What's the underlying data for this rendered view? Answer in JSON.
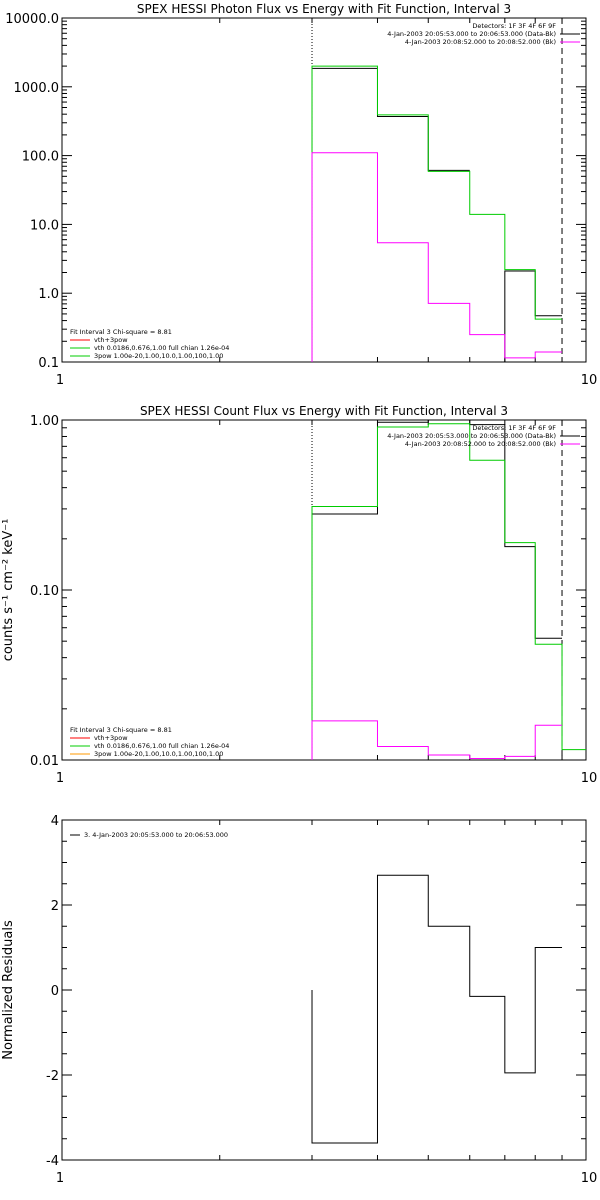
{
  "chart_data": [
    {
      "type": "line",
      "title": "SPEX HESSI Photon Flux vs Energy with Fit Function, Interval 3",
      "xlabel": "",
      "ylabel": "",
      "xscale": "log",
      "yscale": "log",
      "xlim": [
        1,
        10
      ],
      "ylim": [
        0.1,
        10000
      ],
      "x_ticks": [
        {
          "v": 1,
          "label": "1"
        },
        {
          "v": 10,
          "label": "10"
        }
      ],
      "y_ticks": [
        {
          "v": 10000,
          "label": "10000.0"
        },
        {
          "v": 1000,
          "label": "1000.0"
        },
        {
          "v": 100,
          "label": "100.0"
        },
        {
          "v": 10,
          "label": "10.0"
        },
        {
          "v": 1,
          "label": "1.0"
        },
        {
          "v": 0.1,
          "label": "0.1"
        }
      ],
      "fit_range_start": 3.0,
      "fit_range_end": 9.0,
      "bin_edges": [
        3.0,
        4.0,
        5.0,
        6.0,
        7.0,
        8.0,
        9.0
      ],
      "series": [
        {
          "key": "data",
          "color": "#000000",
          "values": [
            1850,
            370,
            61,
            null,
            2.1,
            0.47
          ]
        },
        {
          "key": "model",
          "color": "#00cc00",
          "values": [
            2000,
            390,
            59,
            14,
            2.2,
            0.42
          ]
        },
        {
          "key": "background",
          "color": "#ff00ff",
          "values": [
            110,
            5.4,
            0.71,
            0.25,
            0.115,
            0.14
          ]
        }
      ],
      "legend_top_right": {
        "header": "Detectors: 1F 3F 4F 6F 9F",
        "lines": [
          {
            "text": "4-Jan-2003 20:05:53.000 to 20:06:53.000 (Data-Bk)",
            "color": "#000000"
          },
          {
            "text": "4-Jan-2003 20:08:52.000 to 20:08:52.000 (Bk)",
            "color": "#ff00ff"
          }
        ]
      },
      "legend_bottom_left": {
        "header": "Fit Interval 3   Chi-square = 8.81",
        "lines": [
          {
            "text": "vth+3pow",
            "color": "#ff0000"
          },
          {
            "text": "vth 0.0186,0.676,1.00  full chian 1.26e-04",
            "color": "#00cc00"
          },
          {
            "text": "3pow 1.00e-20,1.00,10.0,1.00,100,1.00",
            "color": "#00cc00"
          }
        ]
      }
    },
    {
      "type": "line",
      "title": "SPEX HESSI Count Flux vs Energy with Fit Function, Interval 3",
      "xlabel": "",
      "ylabel": "counts s⁻¹ cm⁻² keV⁻¹",
      "xscale": "log",
      "yscale": "log",
      "xlim": [
        1,
        10
      ],
      "ylim": [
        0.01,
        1.0
      ],
      "x_ticks": [
        {
          "v": 1,
          "label": "1"
        },
        {
          "v": 10,
          "label": "10"
        }
      ],
      "y_ticks": [
        {
          "v": 1.0,
          "label": "1.00"
        },
        {
          "v": 0.1,
          "label": "0.10"
        },
        {
          "v": 0.01,
          "label": "0.01"
        }
      ],
      "fit_range_start": 3.0,
      "fit_range_end": 9.0,
      "bin_edges": [
        3.0,
        4.0,
        5.0,
        6.0,
        7.0,
        8.0,
        9.0,
        10.0
      ],
      "series": [
        {
          "key": "data",
          "color": "#000000",
          "values": [
            0.28,
            0.97,
            1.0,
            0.94,
            0.18,
            0.052,
            null
          ]
        },
        {
          "key": "model",
          "color": "#00cc00",
          "values": [
            0.31,
            0.91,
            0.95,
            0.58,
            0.19,
            0.048,
            0.0115
          ]
        },
        {
          "key": "background",
          "color": "#ff00ff",
          "values": [
            0.017,
            0.012,
            0.0107,
            0.0102,
            0.0105,
            0.016,
            null
          ]
        }
      ],
      "legend_top_right": {
        "header": "Detectors: 1F 3F 4F 6F 9F",
        "lines": [
          {
            "text": "4-Jan-2003 20:05:53.000 to 20:06:53.000 (Data-Bk)",
            "color": "#000000"
          },
          {
            "text": "4-Jan-2003 20:08:52.000 to 20:08:52.000 (Bk)",
            "color": "#ff00ff"
          }
        ]
      },
      "legend_bottom_left": {
        "header": "Fit Interval 3   Chi-square = 8.81",
        "lines": [
          {
            "text": "vth+3pow",
            "color": "#ff0000"
          },
          {
            "text": "vth 0.0186,0.676,1.00  full chian 1.26e-04",
            "color": "#00cc00"
          },
          {
            "text": "3pow 1.00e-20,1.00,10.0,1.00,100,1.00",
            "color": "#ff9900"
          }
        ]
      }
    },
    {
      "type": "line",
      "title": "",
      "xlabel": "",
      "ylabel": "Normalized Residuals",
      "xscale": "log",
      "yscale": "linear",
      "xlim": [
        1,
        10
      ],
      "ylim": [
        -4,
        4
      ],
      "x_ticks": [
        {
          "v": 1,
          "label": "1"
        },
        {
          "v": 10,
          "label": "10"
        }
      ],
      "y_ticks": [
        {
          "v": 4,
          "label": "4"
        },
        {
          "v": 2,
          "label": "2"
        },
        {
          "v": 0,
          "label": "0"
        },
        {
          "v": -2,
          "label": "-2"
        },
        {
          "v": -4,
          "label": "-4"
        }
      ],
      "bin_edges": [
        3.0,
        4.0,
        5.0,
        6.0,
        7.0,
        8.0,
        9.0
      ],
      "series": [
        {
          "key": "residuals",
          "color": "#000000",
          "values": [
            -3.6,
            2.7,
            1.5,
            -0.15,
            -1.95,
            1.0
          ]
        }
      ],
      "legend": {
        "lines": [
          {
            "text": "3.  4-Jan-2003 20:05:53.000 to 20:06:53.000",
            "color": "#000000"
          }
        ]
      }
    }
  ]
}
